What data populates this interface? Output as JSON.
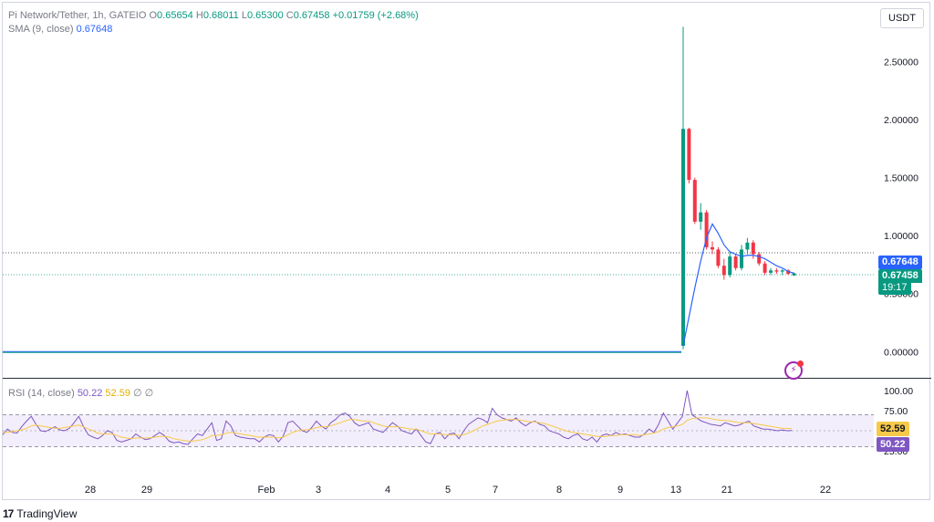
{
  "symbol_legend": {
    "name": "Pi Network/Tether, 1h, GATEIO",
    "open_label": "O",
    "open": "0.65654",
    "high_label": "H",
    "high": "0.68011",
    "low_label": "L",
    "low": "0.65300",
    "close_label": "C",
    "close": "0.67458",
    "change": "+0.01759 (+2.68%)"
  },
  "sma_legend": {
    "name": "SMA (9, close)",
    "value": "0.67648"
  },
  "rsi_legend": {
    "name": "RSI (14, close)",
    "value": "50.22",
    "ma_value": "52.59",
    "extra1": "∅",
    "extra2": "∅"
  },
  "currency_button": "USDT",
  "price_tags": {
    "sma": "0.67648",
    "close": "0.67458",
    "countdown": "19:17"
  },
  "rsi_tags": {
    "ma": "52.59",
    "rsi": "50.22"
  },
  "price_axis": [
    "2.50000",
    "2.00000",
    "1.50000",
    "1.00000",
    "0.50000",
    "0.00000"
  ],
  "rsi_axis": [
    "100.00",
    "75.00",
    "25.00"
  ],
  "time_axis": [
    "28",
    "29",
    "Feb",
    "3",
    "4",
    "5",
    "7",
    "8",
    "9",
    "13",
    "21",
    "22"
  ],
  "watermark": {
    "logo": "17",
    "brand": "TradingView"
  },
  "colors": {
    "up": "#089981",
    "down": "#f23645",
    "sma": "#2962ff",
    "rsi": "#7e57c2",
    "rsi_ma": "#f7c948",
    "rsi_band": "#f3eefb"
  },
  "icons": [
    "flash-icon",
    "tradingview-logo-icon"
  ],
  "chart_data": [
    {
      "type": "candlestick",
      "title": "Pi Network/Tether, 1h, GATEIO",
      "ylim": [
        -0.1,
        2.85
      ],
      "flat_line_value": 0.0,
      "candles": [
        {
          "o": 0.05,
          "h": 2.8,
          "l": 0.02,
          "c": 1.92
        },
        {
          "o": 1.92,
          "h": 1.93,
          "l": 1.45,
          "c": 1.48
        },
        {
          "o": 1.48,
          "h": 1.5,
          "l": 1.1,
          "c": 1.12
        },
        {
          "o": 1.12,
          "h": 1.28,
          "l": 1.05,
          "c": 1.2
        },
        {
          "o": 1.2,
          "h": 1.22,
          "l": 0.88,
          "c": 0.9
        },
        {
          "o": 0.9,
          "h": 0.95,
          "l": 0.84,
          "c": 0.88
        },
        {
          "o": 0.88,
          "h": 0.9,
          "l": 0.72,
          "c": 0.74
        },
        {
          "o": 0.74,
          "h": 0.8,
          "l": 0.62,
          "c": 0.66
        },
        {
          "o": 0.66,
          "h": 0.86,
          "l": 0.64,
          "c": 0.82
        },
        {
          "o": 0.82,
          "h": 0.84,
          "l": 0.7,
          "c": 0.72
        },
        {
          "o": 0.72,
          "h": 0.92,
          "l": 0.7,
          "c": 0.88
        },
        {
          "o": 0.88,
          "h": 0.98,
          "l": 0.84,
          "c": 0.94
        },
        {
          "o": 0.94,
          "h": 0.96,
          "l": 0.8,
          "c": 0.84
        },
        {
          "o": 0.84,
          "h": 0.86,
          "l": 0.74,
          "c": 0.76
        },
        {
          "o": 0.76,
          "h": 0.78,
          "l": 0.66,
          "c": 0.68
        },
        {
          "o": 0.68,
          "h": 0.72,
          "l": 0.66,
          "c": 0.7
        },
        {
          "o": 0.7,
          "h": 0.72,
          "l": 0.67,
          "c": 0.69
        },
        {
          "o": 0.69,
          "h": 0.71,
          "l": 0.66,
          "c": 0.7
        },
        {
          "o": 0.7,
          "h": 0.71,
          "l": 0.66,
          "c": 0.67
        },
        {
          "o": 0.656,
          "h": 0.68,
          "l": 0.653,
          "c": 0.675
        }
      ],
      "sma": [
        0.05,
        0.3,
        0.55,
        0.78,
        0.98,
        1.1,
        1.02,
        0.92,
        0.86,
        0.84,
        0.82,
        0.83,
        0.83,
        0.82,
        0.8,
        0.77,
        0.74,
        0.72,
        0.69,
        0.676
      ]
    },
    {
      "type": "line",
      "title": "RSI (14, close)",
      "ylim": [
        0,
        100
      ],
      "bands": [
        70,
        30
      ],
      "midline": 50,
      "rsi": [
        45,
        52,
        48,
        47,
        55,
        62,
        68,
        58,
        50,
        49,
        52,
        55,
        51,
        50,
        53,
        60,
        68,
        55,
        45,
        42,
        40,
        44,
        50,
        48,
        38,
        36,
        38,
        40,
        46,
        42,
        39,
        40,
        44,
        48,
        44,
        37,
        35,
        36,
        34,
        33,
        40,
        46,
        44,
        52,
        60,
        38,
        40,
        62,
        56,
        44,
        42,
        41,
        40,
        40,
        36,
        42,
        45,
        44,
        36,
        43,
        60,
        62,
        56,
        50,
        48,
        54,
        62,
        56,
        52,
        60,
        64,
        70,
        72,
        68,
        60,
        56,
        58,
        60,
        52,
        50,
        48,
        54,
        60,
        56,
        50,
        48,
        46,
        52,
        44,
        36,
        34,
        46,
        48,
        40,
        46,
        47,
        40,
        50,
        58,
        62,
        66,
        64,
        60,
        78,
        70,
        66,
        64,
        62,
        66,
        60,
        56,
        60,
        62,
        58,
        56,
        50,
        48,
        46,
        42,
        40,
        44,
        46,
        40,
        38,
        42,
        36,
        44,
        46,
        44,
        48,
        45,
        46,
        44,
        42,
        42,
        46,
        52,
        48,
        58,
        72,
        62,
        52,
        60,
        68,
        100,
        70,
        66,
        62,
        60,
        58,
        57,
        56,
        60,
        58,
        56,
        57,
        60,
        62,
        56,
        54,
        52,
        52,
        51,
        50,
        51,
        50,
        50.22
      ],
      "rsi_ma": [
        48,
        48,
        49,
        50,
        51,
        53,
        56,
        57,
        56,
        55,
        54,
        53,
        53,
        54,
        55,
        56,
        57,
        55,
        52,
        50,
        47,
        46,
        46,
        46,
        44,
        42,
        41,
        40,
        41,
        41,
        41,
        41,
        42,
        43,
        43,
        42,
        40,
        39,
        38,
        37,
        37,
        38,
        39,
        41,
        44,
        44,
        45,
        47,
        48,
        47,
        46,
        45,
        44,
        43,
        42,
        42,
        42,
        42,
        41,
        42,
        45,
        48,
        50,
        51,
        51,
        52,
        54,
        55,
        55,
        56,
        58,
        60,
        62,
        64,
        64,
        63,
        62,
        62,
        60,
        58,
        56,
        55,
        55,
        55,
        54,
        53,
        52,
        52,
        50,
        48,
        46,
        46,
        46,
        45,
        45,
        45,
        44,
        45,
        47,
        50,
        53,
        56,
        58,
        60,
        62,
        63,
        64,
        64,
        64,
        63,
        62,
        61,
        61,
        60,
        59,
        57,
        55,
        53,
        51,
        49,
        48,
        47,
        46,
        45,
        44,
        43,
        43,
        43,
        44,
        44,
        45,
        45,
        45,
        45,
        44,
        45,
        46,
        47,
        49,
        52,
        54,
        55,
        56,
        58,
        63,
        65,
        66,
        66,
        66,
        65,
        64,
        63,
        63,
        62,
        61,
        60,
        60,
        60,
        59,
        58,
        57,
        56,
        55,
        54,
        53,
        53,
        52.59
      ]
    }
  ]
}
